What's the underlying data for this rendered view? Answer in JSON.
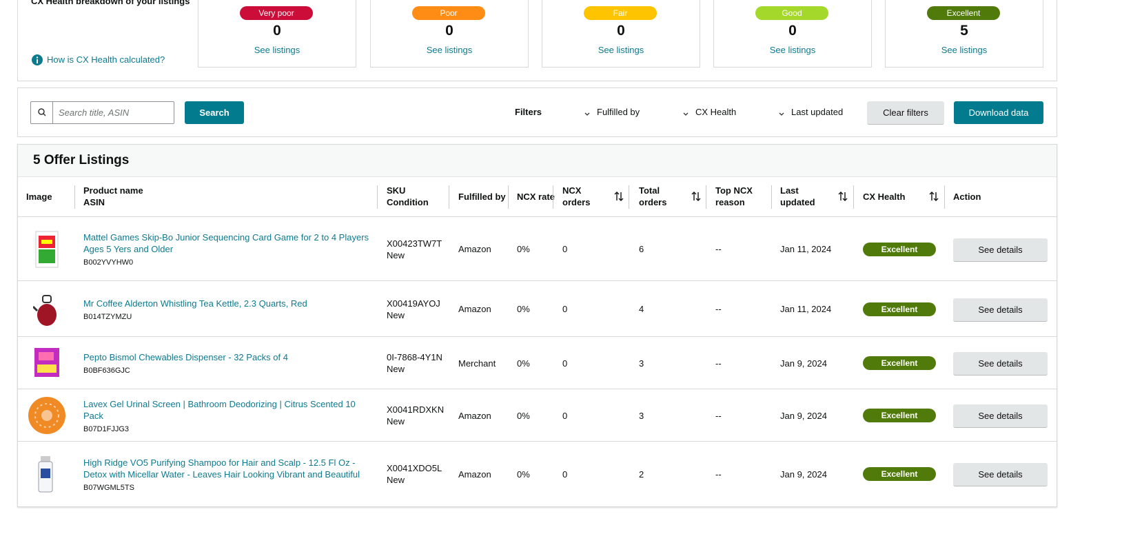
{
  "health": {
    "title": "CX Health breakdown of your listings",
    "help": "How is CX Health calculated?",
    "cards": [
      {
        "label": "Very poor",
        "count": 0,
        "link": "See listings"
      },
      {
        "label": "Poor",
        "count": 0,
        "link": "See listings"
      },
      {
        "label": "Fair",
        "count": 0,
        "link": "See listings"
      },
      {
        "label": "Good",
        "count": 0,
        "link": "See listings"
      },
      {
        "label": "Excellent",
        "count": 5,
        "link": "See listings"
      }
    ]
  },
  "toolbar": {
    "search_placeholder": "Search title, ASIN",
    "search_button": "Search",
    "filters_label": "Filters",
    "filters": [
      "Fulfilled by",
      "CX Health",
      "Last updated"
    ],
    "clear": "Clear filters",
    "download": "Download data"
  },
  "table": {
    "title": "5 Offer Listings",
    "columns": [
      [
        "Image"
      ],
      [
        "Product name",
        "ASIN"
      ],
      [
        "SKU",
        "Condition"
      ],
      [
        "Fulfilled by"
      ],
      [
        "NCX rate"
      ],
      [
        "NCX",
        "orders"
      ],
      [
        "Total",
        "orders"
      ],
      [
        "Top NCX",
        "reason"
      ],
      [
        "Last",
        "updated"
      ],
      [
        "CX Health"
      ],
      [
        "Action"
      ]
    ],
    "rows": [
      {
        "name": "Mattel Games Skip-Bo Junior Sequencing Card Game for 2 to 4 Players Ages 5 Yers and Older",
        "asin": "B002YVYHW0",
        "sku": "X00423TW7T",
        "condition": "New",
        "fulfilled_by": "Amazon",
        "ncx_rate": "0%",
        "ncx_orders": 0,
        "total_orders": 6,
        "top_reason": "--",
        "last_updated": "Jan 11, 2024",
        "health": "Excellent",
        "action": "See details"
      },
      {
        "name": "Mr Coffee Alderton Whistling Tea Kettle, 2.3 Quarts, Red",
        "asin": "B014TZYMZU",
        "sku": "X00419AYOJ",
        "condition": "New",
        "fulfilled_by": "Amazon",
        "ncx_rate": "0%",
        "ncx_orders": 0,
        "total_orders": 4,
        "top_reason": "--",
        "last_updated": "Jan 11, 2024",
        "health": "Excellent",
        "action": "See details"
      },
      {
        "name": "Pepto Bismol Chewables Dispenser - 32 Packs of 4",
        "asin": "B0BF636GJC",
        "sku": "0I-7868-4Y1N",
        "condition": "New",
        "fulfilled_by": "Merchant",
        "ncx_rate": "0%",
        "ncx_orders": 0,
        "total_orders": 3,
        "top_reason": "--",
        "last_updated": "Jan 9, 2024",
        "health": "Excellent",
        "action": "See details"
      },
      {
        "name": "Lavex Gel Urinal Screen | Bathroom Deodorizing | Citrus Scented 10 Pack",
        "asin": "B07D1FJJG3",
        "sku": "X0041RDXKN",
        "condition": "New",
        "fulfilled_by": "Amazon",
        "ncx_rate": "0%",
        "ncx_orders": 0,
        "total_orders": 3,
        "top_reason": "--",
        "last_updated": "Jan 9, 2024",
        "health": "Excellent",
        "action": "See details"
      },
      {
        "name": "High Ridge VO5 Purifying Shampoo for Hair and Scalp - 12.5 Fl Oz - Detox with Micellar Water - Leaves Hair Looking Vibrant and Beautiful",
        "asin": "B07WGML5TS",
        "sku": "X0041XDO5L",
        "condition": "New",
        "fulfilled_by": "Amazon",
        "ncx_rate": "0%",
        "ncx_orders": 0,
        "total_orders": 2,
        "top_reason": "--",
        "last_updated": "Jan 9, 2024",
        "health": "Excellent",
        "action": "See details"
      }
    ]
  }
}
